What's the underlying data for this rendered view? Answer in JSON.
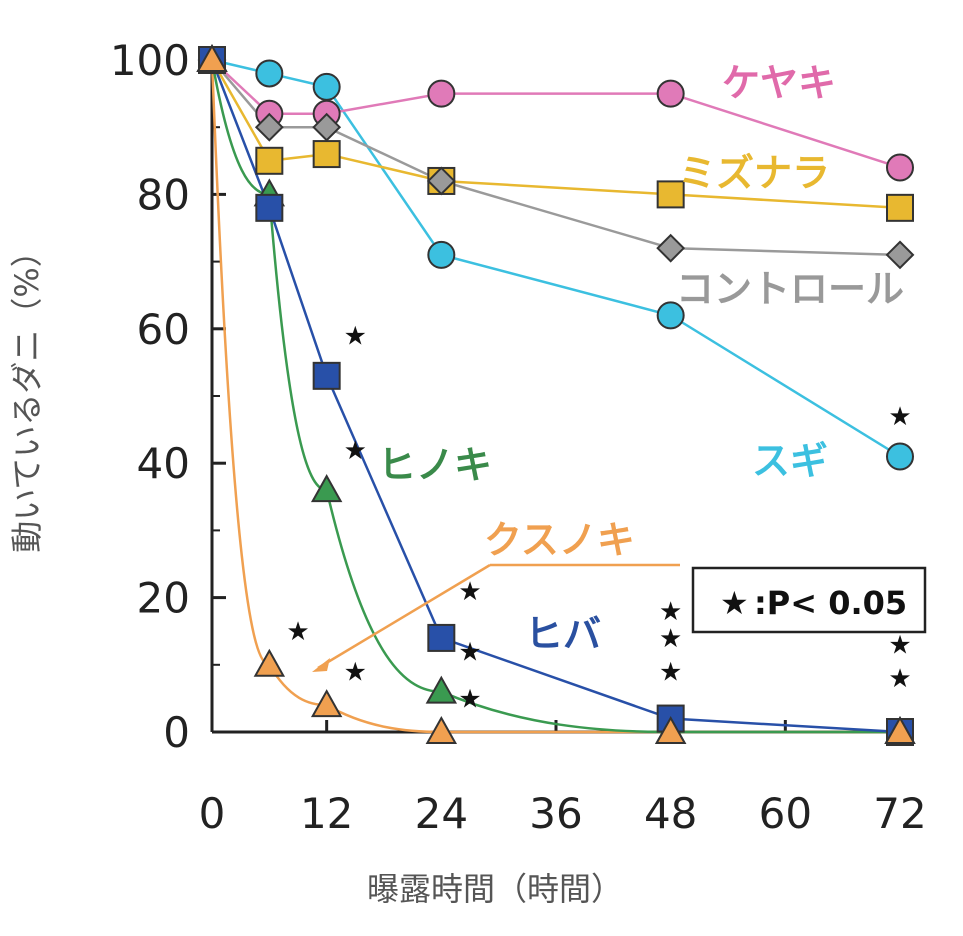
{
  "chart_data": {
    "type": "line",
    "xlabel": "曝露時間（時間）",
    "ylabel": "動いているダニ（%）",
    "xlim": [
      0,
      72
    ],
    "ylim": [
      0,
      100
    ],
    "xticks": [
      "0",
      "12",
      "24",
      "36",
      "48",
      "60",
      "72"
    ],
    "yticks": [
      "0",
      "20",
      "40",
      "60",
      "80",
      "100"
    ],
    "legend": {
      "symbol": "★",
      "text": ":P< 0.05",
      "placement": "right"
    },
    "series": [
      {
        "name": "ケヤキ",
        "color": "#e07ab8",
        "label_color": "#e06aaa",
        "marker": "circle",
        "x": [
          0,
          6,
          12,
          24,
          48,
          72
        ],
        "y": [
          100,
          92,
          92,
          95,
          95,
          84
        ]
      },
      {
        "name": "ミズナラ",
        "color": "#e8b830",
        "label_color": "#e8b830",
        "marker": "square",
        "x": [
          0,
          6,
          12,
          24,
          48,
          72
        ],
        "y": [
          100,
          85,
          86,
          82,
          80,
          78
        ]
      },
      {
        "name": "コントロール",
        "color": "#9a9a9a",
        "label_color": "#999999",
        "marker": "diamond",
        "x": [
          0,
          6,
          12,
          24,
          48,
          72
        ],
        "y": [
          100,
          90,
          90,
          82,
          72,
          71
        ]
      },
      {
        "name": "スギ",
        "color": "#3cc0e0",
        "label_color": "#3cc0e0",
        "marker": "circle",
        "x": [
          0,
          6,
          12,
          24,
          48,
          72
        ],
        "y": [
          100,
          98,
          96,
          71,
          62,
          41
        ]
      },
      {
        "name": "ヒノキ",
        "color": "#3a9a50",
        "label_color": "#3a8a4a",
        "marker": "triangle",
        "x": [
          0,
          6,
          12,
          24,
          48,
          72
        ],
        "y": [
          100,
          80,
          36,
          6,
          0,
          0
        ]
      },
      {
        "name": "ヒバ",
        "color": "#2850a8",
        "label_color": "#2a50a0",
        "marker": "square",
        "x": [
          0,
          6,
          12,
          24,
          48,
          72
        ],
        "y": [
          100,
          78,
          53,
          14,
          2,
          0
        ]
      },
      {
        "name": "クスノキ",
        "color": "#f0a050",
        "label_color": "#f0a050",
        "marker": "triangle",
        "x": [
          0,
          6,
          12,
          24,
          48,
          72
        ],
        "y": [
          100,
          10,
          4,
          0,
          0,
          0
        ]
      }
    ],
    "significance_stars": [
      {
        "x": 9,
        "y": 15
      },
      {
        "x": 15,
        "y": 9
      },
      {
        "x": 15,
        "y": 59
      },
      {
        "x": 15,
        "y": 42
      },
      {
        "x": 27,
        "y": 21
      },
      {
        "x": 27,
        "y": 12
      },
      {
        "x": 27,
        "y": 5
      },
      {
        "x": 48,
        "y": 18
      },
      {
        "x": 48,
        "y": 14
      },
      {
        "x": 48,
        "y": 9
      },
      {
        "x": 72,
        "y": 47
      },
      {
        "x": 72,
        "y": 13
      },
      {
        "x": 72,
        "y": 8
      }
    ]
  }
}
